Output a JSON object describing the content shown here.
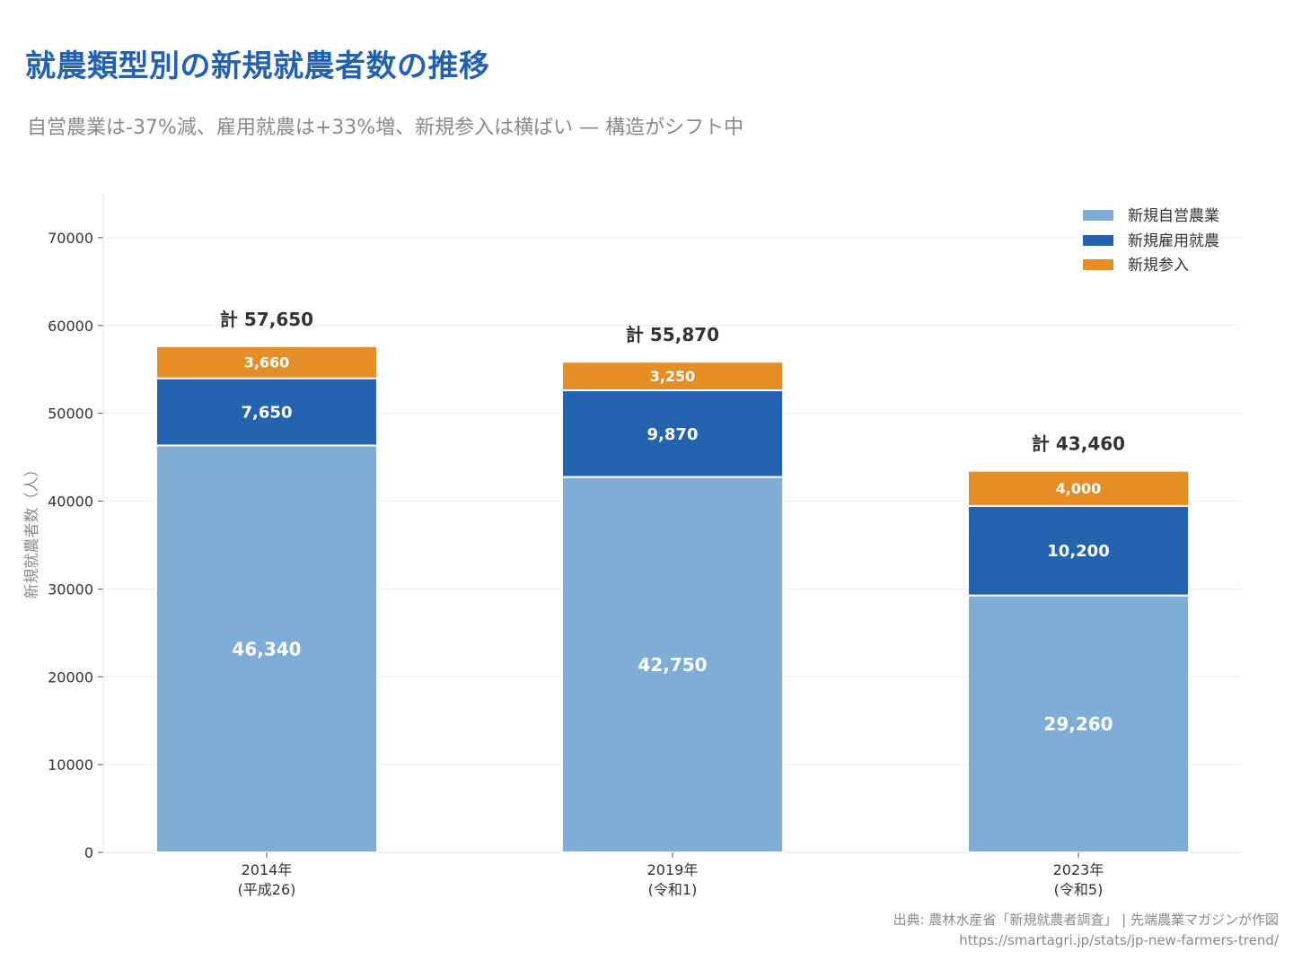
{
  "title": "就農類型別の新規就農者数の推移",
  "subtitle": "自営農業は-37%減、雇用就農は+33%増、新規参入は横ばい — 構造がシフト中",
  "source": "出典: 農林水産省「新規就農者調査」 | 先端農業マガジンが作図",
  "url": "https://smartagri.jp/stats/jp-new-farmers-trend/",
  "colors": {
    "self_employed": "#7fadd6",
    "employed": "#2463b0",
    "new_entry": "#e68e26"
  },
  "chart_data": {
    "type": "bar",
    "stacked": true,
    "categories": [
      [
        "2014年",
        "(平成26)"
      ],
      [
        "2019年",
        "(令和1)"
      ],
      [
        "2023年",
        "(令和5)"
      ]
    ],
    "series": [
      {
        "name": "新規自営農業",
        "values": [
          46340,
          42750,
          29260
        ],
        "labels": [
          "46,340",
          "42,750",
          "29,260"
        ]
      },
      {
        "name": "新規雇用就農",
        "values": [
          7650,
          9870,
          10200
        ],
        "labels": [
          "7,650",
          "9,870",
          "10,200"
        ]
      },
      {
        "name": "新規参入",
        "values": [
          3660,
          3250,
          4000
        ],
        "labels": [
          "3,660",
          "3,250",
          "4,000"
        ]
      }
    ],
    "totals": [
      "計 57,650",
      "計 55,870",
      "計 43,460"
    ],
    "ylabel": "新規就農者数（人）",
    "ylim": [
      0,
      75000
    ],
    "yticks": [
      0,
      10000,
      20000,
      30000,
      40000,
      50000,
      60000,
      70000
    ],
    "ytick_labels": [
      "0",
      "10000",
      "20000",
      "30000",
      "40000",
      "50000",
      "60000",
      "70000"
    ],
    "grid": true,
    "legend_position": "top-right"
  }
}
